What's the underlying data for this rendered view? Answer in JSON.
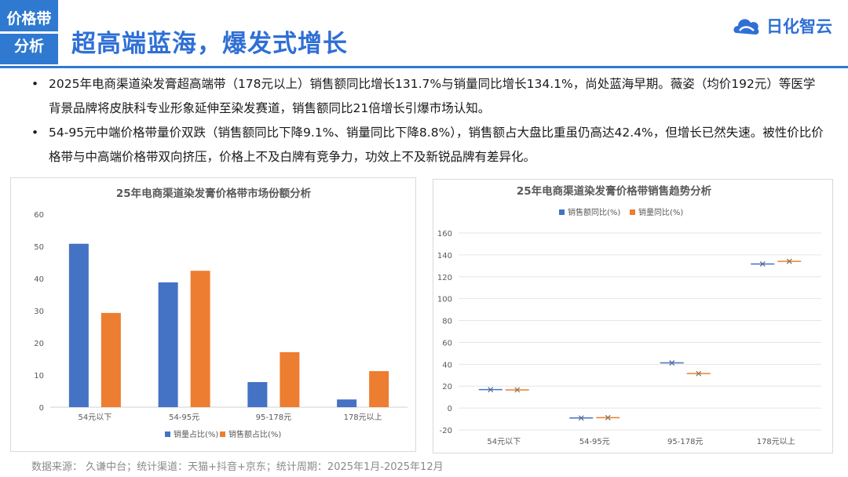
{
  "header": {
    "tag_line1": "价格带",
    "tag_line2": "分析",
    "title": "超高端蓝海，爆发式增长",
    "logo_text": "日化智云"
  },
  "bullets": [
    "2025年电商渠道染发膏超高端带（178元以上）销售额同比增长131.7%与销量同比增长134.1%，尚处蓝海早期。薇姿（均价192元）等医学背景品牌将皮肤科专业形象延伸至染发赛道，销售额同比21倍增长引爆市场认知。",
    "54-95元中端价格带量价双跌（销售额同比下降9.1%、销量同比下降8.8%），销售额占大盘比重虽仍高达42.4%，但增长已然失速。被性价比价格带与中高端价格带双向挤压，价格上不及白牌有竞争力，功效上不及新锐品牌有差异化。"
  ],
  "source": "数据来源： 久谦中台；统计渠道：天猫+抖音+京东；统计周期：2025年1月-2025年12月",
  "chart_data": [
    {
      "type": "bar",
      "title": "25年电商渠道染发膏价格带市场份额分析",
      "categories": [
        "54元以下",
        "54-95元",
        "95-178元",
        "178元以上"
      ],
      "series": [
        {
          "name": "销量占比(%)",
          "values": [
            50.8,
            38.8,
            7.8,
            2.4
          ],
          "color": "#4472c4"
        },
        {
          "name": "销售额占比(%)",
          "values": [
            29.3,
            42.4,
            17.1,
            11.2
          ],
          "color": "#ed7d31"
        }
      ],
      "ylim": [
        0,
        60
      ],
      "yticks": [
        0,
        10,
        20,
        30,
        40,
        50,
        60
      ],
      "grid": false,
      "legend": "bottom"
    },
    {
      "type": "scatter",
      "title": "25年电商渠道染发膏价格带销售趋势分析",
      "categories": [
        "54元以下",
        "54-95元",
        "95-178元",
        "178元以上"
      ],
      "series": [
        {
          "name": "销售额同比(%)",
          "values": [
            16.8,
            -9.1,
            41.3,
            131.7
          ],
          "color": "#4472c4"
        },
        {
          "name": "销量同比(%)",
          "values": [
            16.6,
            -8.8,
            31.5,
            134.1
          ],
          "color": "#ed7d31"
        }
      ],
      "ylim": [
        -20,
        160
      ],
      "yticks": [
        -20,
        0,
        20,
        40,
        60,
        80,
        100,
        120,
        140,
        160
      ],
      "grid": true,
      "legend": "top"
    }
  ]
}
